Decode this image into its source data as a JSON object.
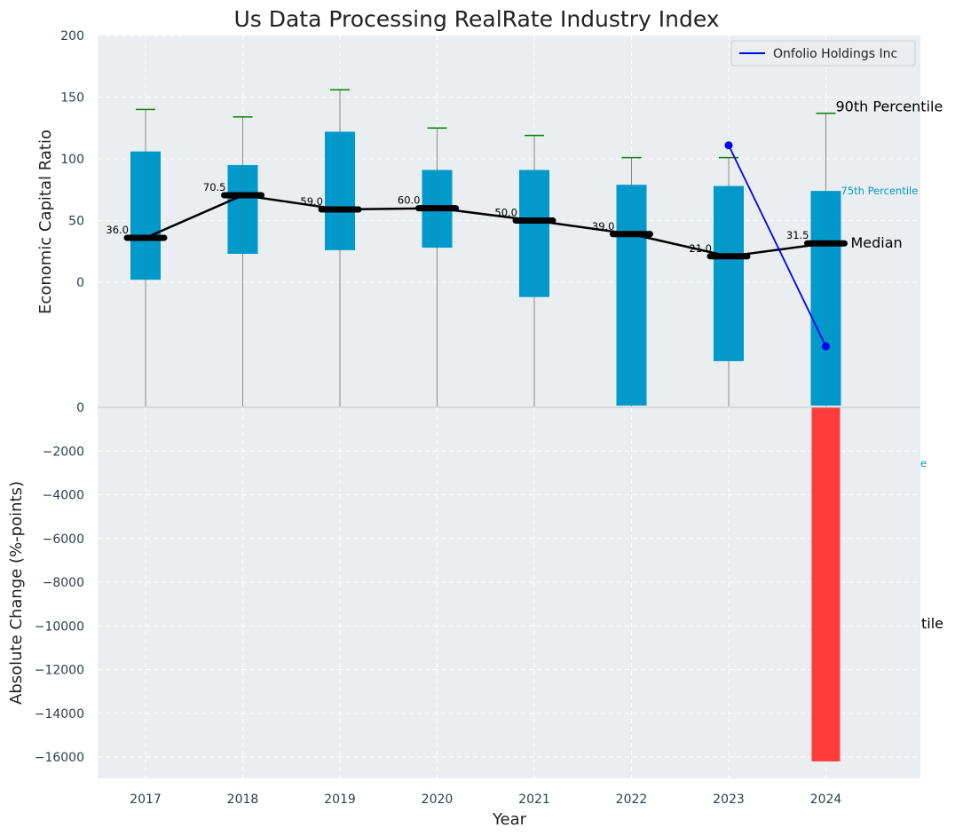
{
  "chart_data": [
    {
      "type": "box",
      "title": "Us Data Processing RealRate Industry Index",
      "ylabel": "Economic Capital Ratio",
      "ylim": [
        -102,
        200
      ],
      "yticks": [
        "200",
        "150",
        "100",
        "50",
        "0"
      ],
      "yticks_values": [
        200,
        150,
        100,
        50,
        0
      ],
      "grid": true,
      "legend": {
        "position": "top-right",
        "entries": [
          "Onfolio Holdings Inc"
        ]
      },
      "categories": [
        "2017",
        "2018",
        "2019",
        "2020",
        "2021",
        "2022",
        "2023",
        "2024"
      ],
      "p90": [
        140,
        134,
        156,
        125,
        119,
        101,
        101,
        137
      ],
      "p75": [
        106,
        95,
        122,
        91,
        91,
        79,
        78,
        74
      ],
      "median": [
        36,
        70.5,
        59,
        60,
        50,
        39,
        21,
        31.5
      ],
      "median_labels": [
        "36.0",
        "70.5",
        "59.0",
        "60.0",
        "50.0",
        "39.0",
        "21.0",
        "31.5"
      ],
      "p25": [
        2,
        23,
        26,
        28,
        -12,
        -102,
        -64,
        -102
      ],
      "p10": [
        -102,
        -102,
        -102,
        -102,
        -102,
        -102,
        -102,
        -102
      ],
      "series": [
        {
          "name": "Onfolio Holdings Inc",
          "color": "#0000ee",
          "x": [
            "2023",
            "2024"
          ],
          "values": [
            111,
            -52
          ]
        }
      ],
      "annotations": [
        "90th Percentile",
        "75th Percentile",
        "Median"
      ],
      "colors": {
        "box": "#0099cc",
        "median": "#000000",
        "whisker_cap": "#008000",
        "company": "#0000ee"
      }
    },
    {
      "type": "bar",
      "xlabel": "Year",
      "ylabel": "Absolute Change (%-points)",
      "ylim": [
        -17000,
        0
      ],
      "yticks": [
        "0",
        "−2000",
        "−4000",
        "−6000",
        "−8000",
        "−10000",
        "−12000",
        "−14000",
        "−16000"
      ],
      "yticks_values": [
        0,
        -2000,
        -4000,
        -6000,
        -8000,
        -10000,
        -12000,
        -14000,
        -16000
      ],
      "grid": true,
      "categories": [
        "2017",
        "2018",
        "2019",
        "2020",
        "2021",
        "2022",
        "2023",
        "2024"
      ],
      "values": [
        null,
        null,
        null,
        null,
        null,
        null,
        null,
        -16200
      ],
      "overflow_labels": [
        "e",
        "tile"
      ],
      "colors": {
        "bar": "#ff3b3b"
      }
    }
  ]
}
